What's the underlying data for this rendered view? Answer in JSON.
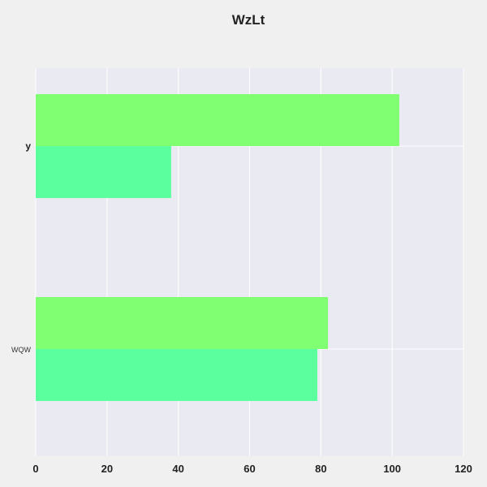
{
  "chart_data": {
    "type": "bar",
    "orientation": "horizontal",
    "title": "WzLt",
    "xlabel": "",
    "ylabel": "",
    "categories": [
      "y",
      "WQW"
    ],
    "series": [
      {
        "values": [
          102,
          82
        ],
        "color": "#80ff72"
      },
      {
        "values": [
          38,
          79
        ],
        "color": "#5cff9d"
      }
    ],
    "xlim": [
      0,
      120
    ],
    "xticks": [
      "0",
      "20",
      "40",
      "60",
      "80",
      "100",
      "120"
    ],
    "grid": true,
    "legend": "none",
    "colors": {
      "background": "#f0f0f0",
      "plot_area": "#eaeaf2",
      "grid": "#ffffff"
    }
  }
}
